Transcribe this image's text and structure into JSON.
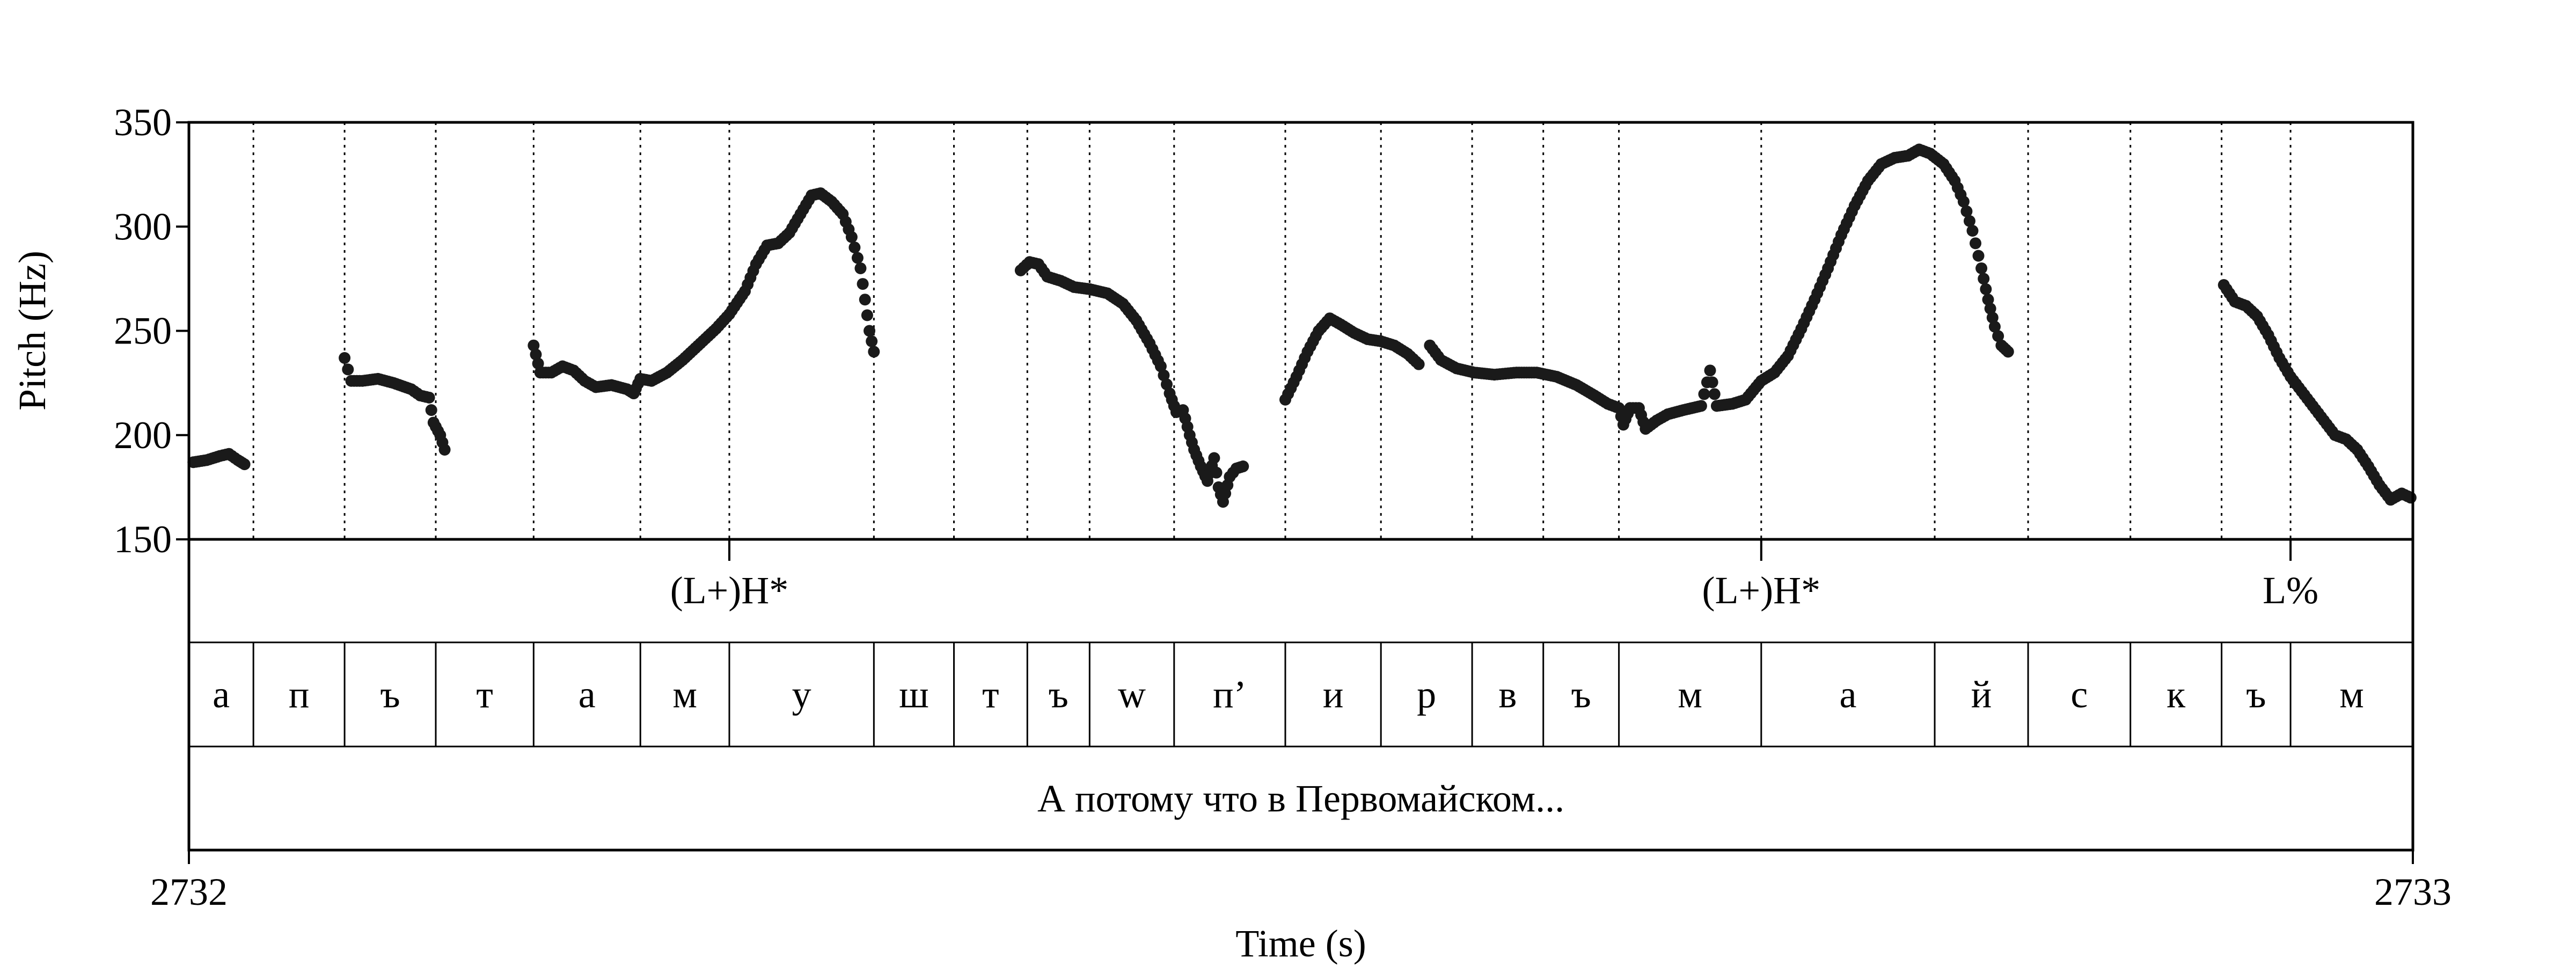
{
  "chart_data": {
    "type": "scatter",
    "title": "",
    "xlabel": "Time (s)",
    "ylabel": "Pitch (Hz)",
    "xlim": [
      2732,
      2733
    ],
    "ylim": [
      150,
      350
    ],
    "x_tick_labels": [
      "2732",
      "2733"
    ],
    "y_ticks": [
      150,
      200,
      250,
      300,
      350
    ],
    "y_tick_labels": [
      "150",
      "200",
      "250",
      "300",
      "350"
    ],
    "grid": false,
    "segment_boundaries": [
      0.029,
      0.07,
      0.111,
      0.155,
      0.203,
      0.243,
      0.308,
      0.344,
      0.377,
      0.405,
      0.443,
      0.493,
      0.536,
      0.577,
      0.609,
      0.643,
      0.707,
      0.785,
      0.827,
      0.873,
      0.914,
      0.945
    ],
    "tones": [
      {
        "label": "(L+)H*",
        "t": 0.243
      },
      {
        "label": "(L+)H*",
        "t": 0.707
      },
      {
        "label": "L%",
        "t": 0.945
      }
    ],
    "segments": [
      {
        "label": "а",
        "start": 0.0,
        "end": 0.029
      },
      {
        "label": "п",
        "start": 0.029,
        "end": 0.07
      },
      {
        "label": "ъ",
        "start": 0.07,
        "end": 0.111
      },
      {
        "label": "т",
        "start": 0.111,
        "end": 0.155
      },
      {
        "label": "а",
        "start": 0.155,
        "end": 0.203
      },
      {
        "label": "м",
        "start": 0.203,
        "end": 0.243
      },
      {
        "label": "у",
        "start": 0.243,
        "end": 0.308
      },
      {
        "label": "ш",
        "start": 0.308,
        "end": 0.344
      },
      {
        "label": "т",
        "start": 0.344,
        "end": 0.377
      },
      {
        "label": "ъ",
        "start": 0.377,
        "end": 0.405
      },
      {
        "label": "w",
        "start": 0.405,
        "end": 0.443
      },
      {
        "label": "п’",
        "start": 0.443,
        "end": 0.493
      },
      {
        "label": "и",
        "start": 0.493,
        "end": 0.536
      },
      {
        "label": "р",
        "start": 0.536,
        "end": 0.577
      },
      {
        "label": "в",
        "start": 0.577,
        "end": 0.609
      },
      {
        "label": "ъ",
        "start": 0.609,
        "end": 0.643
      },
      {
        "label": "м",
        "start": 0.643,
        "end": 0.707
      },
      {
        "label": "а",
        "start": 0.707,
        "end": 0.785
      },
      {
        "label": "й",
        "start": 0.785,
        "end": 0.827
      },
      {
        "label": "с",
        "start": 0.827,
        "end": 0.873
      },
      {
        "label": "к",
        "start": 0.873,
        "end": 0.914
      },
      {
        "label": "ъ",
        "start": 0.914,
        "end": 0.945
      },
      {
        "label": "м",
        "start": 0.945,
        "end": 1.0
      }
    ],
    "utterance": "А потому что в Первомайском...",
    "pitch_contours": [
      [
        [
          0.002,
          187
        ],
        [
          0.008,
          188
        ],
        [
          0.014,
          190
        ],
        [
          0.018,
          191
        ],
        [
          0.022,
          188
        ],
        [
          0.025,
          186
        ]
      ],
      [
        [
          0.07,
          237
        ],
        [
          0.073,
          226
        ],
        [
          0.078,
          226
        ],
        [
          0.085,
          227
        ],
        [
          0.092,
          225
        ],
        [
          0.1,
          222
        ],
        [
          0.104,
          219
        ],
        [
          0.108,
          218
        ],
        [
          0.11,
          206
        ],
        [
          0.113,
          200
        ],
        [
          0.115,
          193
        ]
      ],
      [
        [
          0.155,
          243
        ],
        [
          0.158,
          230
        ],
        [
          0.163,
          230
        ],
        [
          0.168,
          233
        ],
        [
          0.173,
          231
        ],
        [
          0.178,
          226
        ],
        [
          0.183,
          223
        ],
        [
          0.19,
          224
        ],
        [
          0.197,
          222
        ],
        [
          0.2,
          220
        ],
        [
          0.203,
          227
        ],
        [
          0.208,
          226
        ],
        [
          0.215,
          230
        ],
        [
          0.222,
          236
        ],
        [
          0.23,
          244
        ],
        [
          0.237,
          251
        ],
        [
          0.243,
          258
        ],
        [
          0.25,
          269
        ],
        [
          0.255,
          282
        ],
        [
          0.26,
          291
        ],
        [
          0.265,
          292
        ],
        [
          0.27,
          297
        ],
        [
          0.275,
          306
        ],
        [
          0.28,
          315
        ],
        [
          0.284,
          316
        ],
        [
          0.289,
          312
        ],
        [
          0.294,
          306
        ],
        [
          0.298,
          295
        ],
        [
          0.302,
          280
        ],
        [
          0.304,
          265
        ],
        [
          0.306,
          250
        ],
        [
          0.308,
          240
        ]
      ],
      [
        [
          0.374,
          279
        ],
        [
          0.378,
          283
        ],
        [
          0.382,
          282
        ],
        [
          0.386,
          276
        ],
        [
          0.392,
          274
        ],
        [
          0.398,
          271
        ],
        [
          0.405,
          270
        ],
        [
          0.413,
          268
        ],
        [
          0.42,
          263
        ],
        [
          0.426,
          255
        ],
        [
          0.432,
          244
        ],
        [
          0.437,
          233
        ],
        [
          0.441,
          220
        ],
        [
          0.444,
          211
        ],
        [
          0.447,
          212
        ],
        [
          0.45,
          200
        ],
        [
          0.452,
          193
        ],
        [
          0.455,
          185
        ],
        [
          0.458,
          178
        ],
        [
          0.461,
          189
        ],
        [
          0.463,
          175
        ],
        [
          0.465,
          168
        ],
        [
          0.468,
          180
        ],
        [
          0.471,
          184
        ],
        [
          0.474,
          185
        ]
      ],
      [
        [
          0.493,
          217
        ],
        [
          0.498,
          228
        ],
        [
          0.503,
          240
        ],
        [
          0.508,
          250
        ],
        [
          0.513,
          256
        ],
        [
          0.518,
          253
        ],
        [
          0.524,
          249
        ],
        [
          0.53,
          246
        ],
        [
          0.536,
          245
        ],
        [
          0.542,
          243
        ],
        [
          0.548,
          239
        ],
        [
          0.553,
          234
        ]
      ],
      [
        [
          0.558,
          243
        ],
        [
          0.563,
          236
        ],
        [
          0.57,
          232
        ],
        [
          0.578,
          230
        ],
        [
          0.587,
          229
        ],
        [
          0.597,
          230
        ],
        [
          0.606,
          230
        ],
        [
          0.615,
          228
        ],
        [
          0.624,
          224
        ],
        [
          0.632,
          219
        ],
        [
          0.638,
          215
        ],
        [
          0.643,
          213
        ],
        [
          0.645,
          205
        ],
        [
          0.648,
          213
        ],
        [
          0.652,
          213
        ],
        [
          0.655,
          203
        ],
        [
          0.66,
          207
        ],
        [
          0.665,
          210
        ],
        [
          0.672,
          212
        ],
        [
          0.68,
          214
        ],
        [
          0.684,
          231
        ],
        [
          0.687,
          214
        ],
        [
          0.694,
          215
        ],
        [
          0.7,
          217
        ],
        [
          0.707,
          226
        ],
        [
          0.713,
          230
        ],
        [
          0.719,
          238
        ],
        [
          0.725,
          251
        ],
        [
          0.731,
          265
        ],
        [
          0.737,
          280
        ],
        [
          0.743,
          296
        ],
        [
          0.749,
          310
        ],
        [
          0.755,
          322
        ],
        [
          0.761,
          330
        ],
        [
          0.767,
          333
        ],
        [
          0.773,
          334
        ],
        [
          0.778,
          337
        ],
        [
          0.783,
          335
        ],
        [
          0.789,
          330
        ],
        [
          0.794,
          322
        ],
        [
          0.798,
          312
        ],
        [
          0.802,
          298
        ],
        [
          0.806,
          280
        ],
        [
          0.809,
          265
        ],
        [
          0.812,
          252
        ],
        [
          0.815,
          243
        ],
        [
          0.818,
          240
        ]
      ],
      [
        [
          0.915,
          272
        ],
        [
          0.92,
          264
        ],
        [
          0.925,
          262
        ],
        [
          0.93,
          257
        ],
        [
          0.935,
          248
        ],
        [
          0.94,
          237
        ],
        [
          0.945,
          228
        ],
        [
          0.95,
          221
        ],
        [
          0.955,
          214
        ],
        [
          0.96,
          207
        ],
        [
          0.965,
          200
        ],
        [
          0.97,
          198
        ],
        [
          0.975,
          193
        ],
        [
          0.98,
          185
        ],
        [
          0.985,
          176
        ],
        [
          0.99,
          169
        ],
        [
          0.995,
          172
        ],
        [
          0.999,
          170
        ]
      ]
    ]
  }
}
